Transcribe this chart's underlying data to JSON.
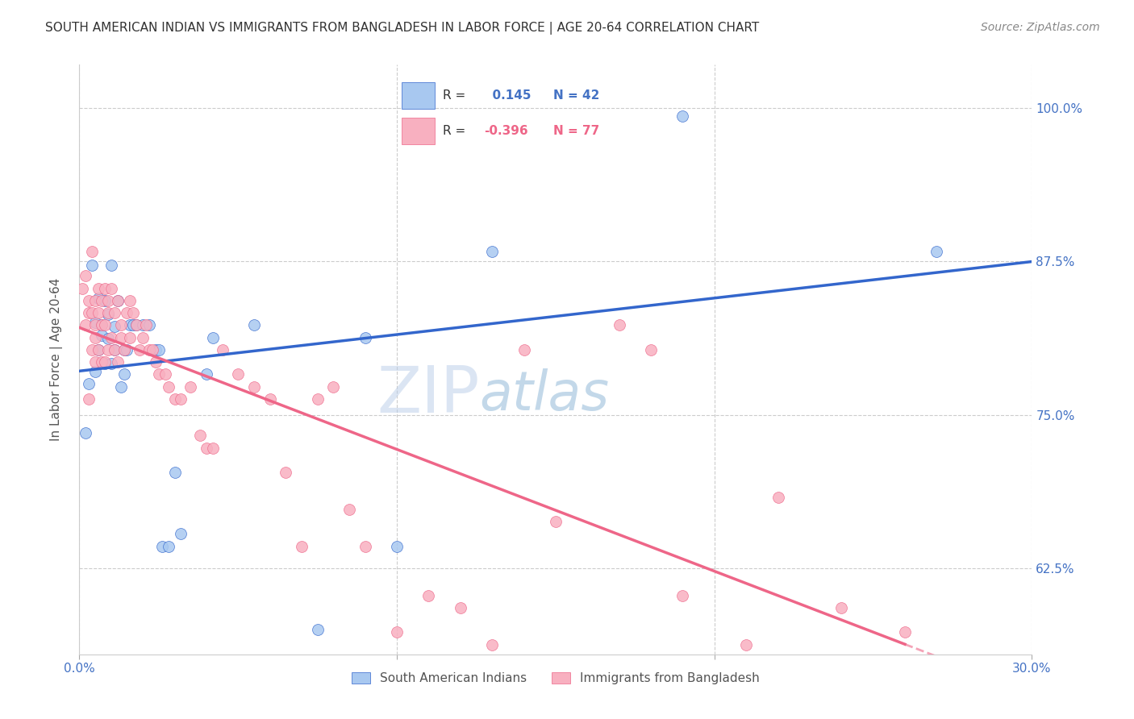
{
  "title": "SOUTH AMERICAN INDIAN VS IMMIGRANTS FROM BANGLADESH IN LABOR FORCE | AGE 20-64 CORRELATION CHART",
  "source": "Source: ZipAtlas.com",
  "ylabel": "In Labor Force | Age 20-64",
  "xlim": [
    0.0,
    0.3
  ],
  "ylim": [
    0.555,
    1.035
  ],
  "yticks": [
    0.625,
    0.75,
    0.875,
    1.0
  ],
  "ytick_labels": [
    "62.5%",
    "75.0%",
    "87.5%",
    "100.0%"
  ],
  "xtick_positions": [
    0.0,
    0.1,
    0.2,
    0.3
  ],
  "xtick_labels": [
    "0.0%",
    "",
    "",
    "30.0%"
  ],
  "blue_R": 0.145,
  "blue_N": 42,
  "pink_R": -0.396,
  "pink_N": 77,
  "blue_color": "#A8C8F0",
  "pink_color": "#F8B0C0",
  "blue_line_color": "#3366CC",
  "pink_line_color": "#EE6688",
  "watermark_zip": "ZIP",
  "watermark_atlas": "atlas",
  "legend_blue_label": "South American Indians",
  "legend_pink_label": "Immigrants from Bangladesh",
  "blue_scatter_x": [
    0.002,
    0.003,
    0.004,
    0.005,
    0.005,
    0.006,
    0.006,
    0.007,
    0.007,
    0.008,
    0.008,
    0.009,
    0.009,
    0.01,
    0.01,
    0.011,
    0.011,
    0.012,
    0.013,
    0.014,
    0.014,
    0.015,
    0.016,
    0.017,
    0.018,
    0.02,
    0.022,
    0.024,
    0.025,
    0.026,
    0.028,
    0.03,
    0.032,
    0.04,
    0.042,
    0.055,
    0.075,
    0.09,
    0.1,
    0.13,
    0.19,
    0.27
  ],
  "blue_scatter_y": [
    0.735,
    0.775,
    0.872,
    0.825,
    0.785,
    0.845,
    0.803,
    0.823,
    0.815,
    0.843,
    0.792,
    0.832,
    0.812,
    0.872,
    0.792,
    0.822,
    0.803,
    0.843,
    0.773,
    0.803,
    0.783,
    0.803,
    0.823,
    0.823,
    0.823,
    0.823,
    0.823,
    0.803,
    0.803,
    0.643,
    0.643,
    0.703,
    0.653,
    0.783,
    0.813,
    0.823,
    0.575,
    0.813,
    0.643,
    0.883,
    0.993,
    0.883
  ],
  "pink_scatter_x": [
    0.001,
    0.002,
    0.002,
    0.003,
    0.003,
    0.003,
    0.004,
    0.004,
    0.004,
    0.005,
    0.005,
    0.005,
    0.005,
    0.006,
    0.006,
    0.006,
    0.007,
    0.007,
    0.007,
    0.008,
    0.008,
    0.008,
    0.009,
    0.009,
    0.009,
    0.01,
    0.01,
    0.011,
    0.011,
    0.012,
    0.012,
    0.013,
    0.013,
    0.014,
    0.015,
    0.016,
    0.016,
    0.017,
    0.018,
    0.019,
    0.02,
    0.021,
    0.022,
    0.023,
    0.024,
    0.025,
    0.027,
    0.028,
    0.03,
    0.032,
    0.035,
    0.038,
    0.04,
    0.042,
    0.045,
    0.05,
    0.055,
    0.06,
    0.065,
    0.07,
    0.075,
    0.08,
    0.085,
    0.09,
    0.1,
    0.11,
    0.12,
    0.13,
    0.14,
    0.15,
    0.17,
    0.18,
    0.19,
    0.21,
    0.22,
    0.24,
    0.26
  ],
  "pink_scatter_y": [
    0.853,
    0.823,
    0.863,
    0.843,
    0.833,
    0.763,
    0.833,
    0.883,
    0.803,
    0.843,
    0.823,
    0.813,
    0.793,
    0.853,
    0.833,
    0.803,
    0.843,
    0.823,
    0.793,
    0.853,
    0.823,
    0.793,
    0.843,
    0.833,
    0.803,
    0.853,
    0.813,
    0.833,
    0.803,
    0.843,
    0.793,
    0.823,
    0.813,
    0.803,
    0.833,
    0.843,
    0.813,
    0.833,
    0.823,
    0.803,
    0.813,
    0.823,
    0.803,
    0.803,
    0.793,
    0.783,
    0.783,
    0.773,
    0.763,
    0.763,
    0.773,
    0.733,
    0.723,
    0.723,
    0.803,
    0.783,
    0.773,
    0.763,
    0.703,
    0.643,
    0.763,
    0.773,
    0.673,
    0.643,
    0.573,
    0.603,
    0.593,
    0.563,
    0.803,
    0.663,
    0.823,
    0.803,
    0.603,
    0.563,
    0.683,
    0.593,
    0.573
  ],
  "title_fontsize": 11,
  "source_fontsize": 10,
  "axis_label_fontsize": 11,
  "tick_fontsize": 11,
  "legend_fontsize": 11
}
